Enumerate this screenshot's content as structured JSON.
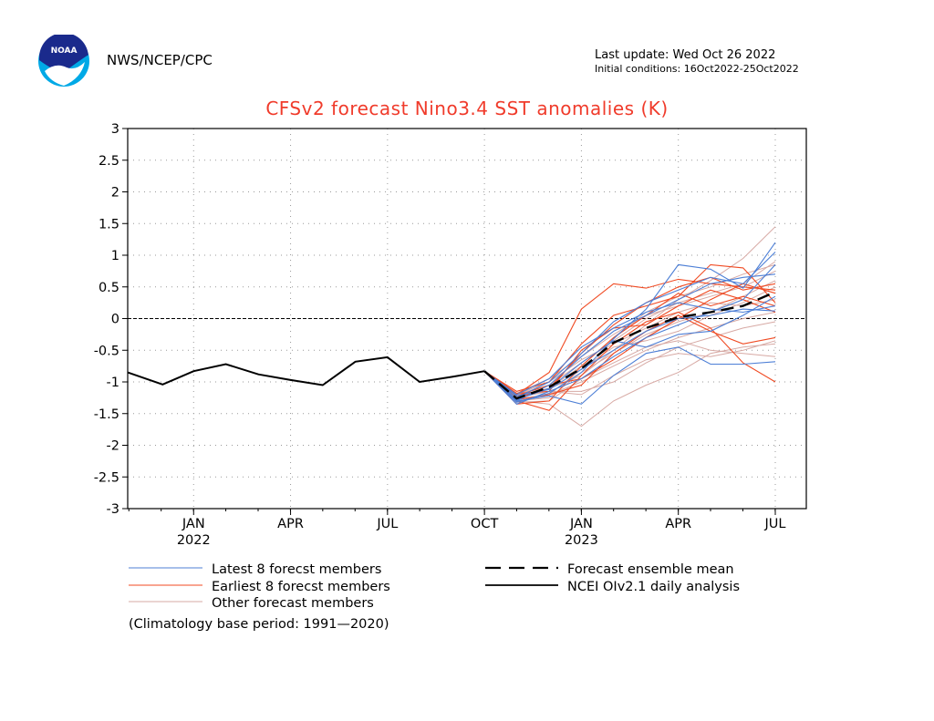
{
  "header": {
    "agency": "NWS/NCEP/CPC",
    "last_update": "Last update: Wed Oct 26 2022",
    "initial_conditions": "Initial conditions: 16Oct2022-25Oct2022",
    "logo_text": "NOAA"
  },
  "colors": {
    "latest": "#4d7fd6",
    "earliest": "#f04a22",
    "other": "#d7a9a4",
    "mean": "#000000",
    "analysis": "#000000",
    "title": "#f03b2b"
  },
  "chart_data": {
    "type": "line",
    "title": "CFSv2 forecast Nino3.4 SST anomalies (K)",
    "ylim": [
      -3,
      3
    ],
    "y_ticks": [
      "3",
      "2.5",
      "2",
      "1.5",
      "1",
      "0.5",
      "0",
      "-0.5",
      "-1",
      "-1.5",
      "-2",
      "-2.5",
      "-3"
    ],
    "x_ticks": [
      {
        "label": "JAN",
        "year": "2022",
        "x": 2022.0
      },
      {
        "label": "APR",
        "year": "",
        "x": 2022.25
      },
      {
        "label": "JUL",
        "year": "",
        "x": 2022.5
      },
      {
        "label": "OCT",
        "year": "",
        "x": 2022.75
      },
      {
        "label": "JAN",
        "year": "2023",
        "x": 2023.0
      },
      {
        "label": "APR",
        "year": "",
        "x": 2023.25
      },
      {
        "label": "JUL",
        "year": "",
        "x": 2023.5
      }
    ],
    "xlim": [
      2021.83,
      2023.58
    ],
    "grid": true,
    "zero_line": true,
    "analysis": {
      "name": "NCEI OIv2.1 daily analysis",
      "x": [
        2021.83,
        2021.92,
        2022.0,
        2022.083,
        2022.167,
        2022.25,
        2022.333,
        2022.417,
        2022.5,
        2022.583,
        2022.667,
        2022.75
      ],
      "y": [
        -0.85,
        -1.04,
        -0.83,
        -0.72,
        -0.88,
        -0.97,
        -1.05,
        -0.68,
        -0.61,
        -1.0,
        -0.92,
        -0.83
      ]
    },
    "forecast_mean": {
      "name": "Forecast ensemble mean",
      "x": [
        2022.75,
        2022.833,
        2022.917,
        2023.0,
        2023.083,
        2023.167,
        2023.25,
        2023.333,
        2023.417,
        2023.5
      ],
      "y": [
        -0.83,
        -1.26,
        -1.08,
        -0.79,
        -0.38,
        -0.15,
        0.02,
        0.1,
        0.2,
        0.42
      ]
    },
    "forecast_x": [
      2022.75,
      2022.833,
      2022.917,
      2023.0,
      2023.083,
      2023.167,
      2023.25,
      2023.333,
      2023.417,
      2023.5
    ],
    "latest_members": [
      [
        -0.83,
        -1.32,
        -1.18,
        -0.85,
        -0.32,
        0.15,
        0.85,
        0.78,
        0.48,
        1.2
      ],
      [
        -0.83,
        -1.25,
        -1.0,
        -0.55,
        -0.05,
        0.25,
        0.45,
        0.65,
        0.55,
        1.05
      ],
      [
        -0.83,
        -1.3,
        -1.22,
        -1.35,
        -0.9,
        -0.55,
        -0.45,
        -0.72,
        -0.72,
        -0.68
      ],
      [
        -0.83,
        -1.2,
        -0.95,
        -0.45,
        -0.15,
        0.1,
        0.25,
        0.15,
        0.1,
        0.2
      ],
      [
        -0.83,
        -1.35,
        -1.15,
        -0.95,
        -0.6,
        -0.3,
        -0.1,
        0.1,
        0.3,
        0.85
      ],
      [
        -0.83,
        -1.28,
        -1.1,
        -0.7,
        -0.35,
        -0.45,
        -0.25,
        -0.2,
        0.05,
        0.35
      ],
      [
        -0.83,
        -1.3,
        -1.05,
        -0.6,
        -0.2,
        0.05,
        0.3,
        0.55,
        0.65,
        0.7
      ],
      [
        -0.83,
        -1.22,
        -1.12,
        -0.8,
        -0.5,
        -0.2,
        0.0,
        0.05,
        0.15,
        0.12
      ]
    ],
    "earliest_members": [
      [
        -0.83,
        -1.2,
        -0.85,
        0.15,
        0.55,
        0.48,
        0.62,
        0.55,
        0.5,
        0.45
      ],
      [
        -0.83,
        -1.15,
        -1.0,
        -0.4,
        0.05,
        0.2,
        0.35,
        0.85,
        0.8,
        0.25
      ],
      [
        -0.83,
        -1.3,
        -1.45,
        -0.9,
        -0.4,
        -0.05,
        0.1,
        -0.15,
        -0.7,
        -1.0
      ],
      [
        -0.83,
        -1.25,
        -1.1,
        -0.55,
        -0.1,
        0.25,
        0.5,
        0.65,
        0.45,
        0.55
      ],
      [
        -0.83,
        -1.28,
        -1.2,
        -1.05,
        -0.55,
        -0.2,
        0.05,
        -0.2,
        -0.4,
        -0.3
      ],
      [
        -0.83,
        -1.35,
        -1.3,
        -0.75,
        -0.3,
        0.05,
        0.4,
        0.2,
        0.35,
        0.2
      ],
      [
        -0.83,
        -1.22,
        -1.05,
        -0.95,
        -0.65,
        -0.3,
        0.0,
        0.3,
        0.55,
        0.4
      ],
      [
        -0.83,
        -1.18,
        -1.15,
        -0.5,
        -0.15,
        -0.1,
        0.2,
        0.45,
        0.3,
        0.1
      ]
    ],
    "other_members": [
      [
        -0.83,
        -1.3,
        -1.35,
        -1.7,
        -1.3,
        -1.05,
        -0.85,
        -0.55,
        -0.45,
        -0.4
      ],
      [
        -0.83,
        -1.25,
        -1.1,
        -0.9,
        -0.5,
        -0.1,
        0.3,
        0.6,
        0.95,
        1.45
      ],
      [
        -0.83,
        -1.2,
        -1.05,
        -0.7,
        -0.35,
        0.0,
        0.25,
        0.4,
        0.55,
        0.9
      ],
      [
        -0.83,
        -1.28,
        -1.2,
        -1.0,
        -0.75,
        -0.5,
        -0.3,
        -0.15,
        0.0,
        0.1
      ],
      [
        -0.83,
        -1.22,
        -1.15,
        -1.2,
        -0.9,
        -0.65,
        -0.55,
        -0.6,
        -0.5,
        -0.35
      ],
      [
        -0.83,
        -1.3,
        -1.25,
        -0.85,
        -0.55,
        -0.25,
        -0.05,
        0.1,
        0.35,
        0.6
      ],
      [
        -0.83,
        -1.18,
        -0.95,
        -0.6,
        -0.25,
        0.05,
        0.2,
        0.35,
        0.5,
        0.75
      ],
      [
        -0.83,
        -1.25,
        -1.15,
        -1.15,
        -1.0,
        -0.7,
        -0.45,
        -0.3,
        -0.15,
        -0.05
      ],
      [
        -0.83,
        -1.32,
        -1.3,
        -0.95,
        -0.7,
        -0.45,
        -0.35,
        -0.5,
        -0.55,
        -0.6
      ],
      [
        -0.83,
        -1.2,
        -1.0,
        -0.65,
        -0.4,
        -0.15,
        0.1,
        0.25,
        0.2,
        0.3
      ],
      [
        -0.83,
        -1.27,
        -1.2,
        -0.8,
        -0.45,
        -0.35,
        -0.2,
        0.05,
        0.25,
        0.5
      ],
      [
        -0.83,
        -1.24,
        -1.1,
        -0.75,
        -0.3,
        0.1,
        0.35,
        0.5,
        0.7,
        0.85
      ]
    ],
    "legend": {
      "latest": "Latest 8 forecst members",
      "earliest": "Earliest 8 forecst members",
      "other": "Other forecast members",
      "mean": "Forecast ensemble mean",
      "analysis": "NCEI OIv2.1 daily analysis"
    },
    "note": "(Climatology base period: 1991—2020)"
  }
}
